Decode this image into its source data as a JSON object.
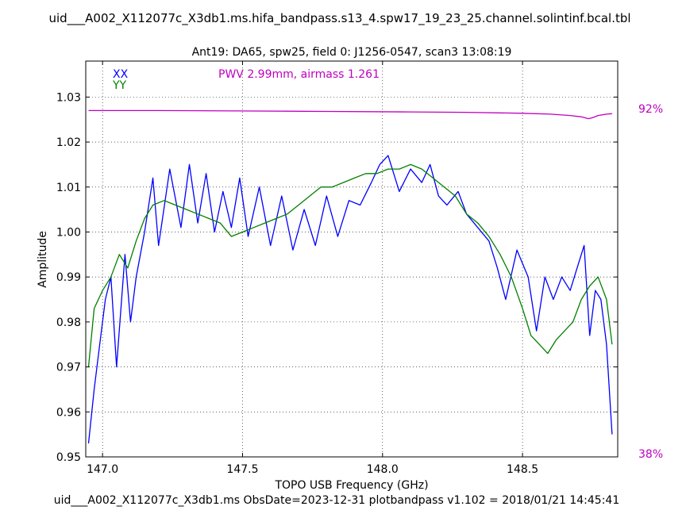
{
  "header": {
    "title": "uid___A002_X112077c_X3db1.ms.hifa_bandpass.s13_4.spw17_19_23_25.channel.solintinf.bcal.tbl",
    "subtitle": "Ant19: DA65,  spw25,  field 0: J1256-0547,  scan3  13:08:19"
  },
  "footer": {
    "text": "uid___A002_X112077c_X3db1.ms  ObsDate=2023-12-31   plotbandpass v1.102 = 2018/01/21 14:45:41"
  },
  "chart_data": {
    "type": "line",
    "xlabel": "TOPO USB Frequency (GHz)",
    "ylabel": "Amplitude",
    "xlim": [
      146.94,
      148.84
    ],
    "ylim": [
      0.95,
      1.038
    ],
    "xticks": [
      147.0,
      147.5,
      148.0,
      148.5
    ],
    "xtick_labels": [
      "147.0",
      "147.5",
      "148.0",
      "148.5"
    ],
    "yticks": [
      0.95,
      0.96,
      0.97,
      0.98,
      0.99,
      1.0,
      1.01,
      1.02,
      1.03
    ],
    "ytick_labels": [
      "0.95",
      "0.96",
      "0.97",
      "0.98",
      "0.99",
      "1.00",
      "1.01",
      "1.02",
      "1.03"
    ],
    "grid": true,
    "legend": "top-left",
    "annotation": {
      "text": "PWV 2.99mm, airmass 1.261",
      "color": "#bf00bf"
    },
    "right_axis": {
      "top_label": "92%",
      "bottom_label": "38%",
      "color": "#bf00bf"
    },
    "series": [
      {
        "name": "XX",
        "color": "#0000ff",
        "x": [
          146.95,
          146.97,
          146.99,
          147.01,
          147.03,
          147.05,
          147.08,
          147.1,
          147.12,
          147.15,
          147.18,
          147.2,
          147.24,
          147.28,
          147.31,
          147.34,
          147.37,
          147.4,
          147.43,
          147.46,
          147.49,
          147.52,
          147.56,
          147.6,
          147.64,
          147.68,
          147.72,
          147.76,
          147.8,
          147.84,
          147.88,
          147.92,
          147.96,
          147.99,
          148.02,
          148.06,
          148.1,
          148.14,
          148.17,
          148.2,
          148.23,
          148.27,
          148.3,
          148.34,
          148.38,
          148.41,
          148.44,
          148.48,
          148.52,
          148.55,
          148.58,
          148.61,
          148.64,
          148.67,
          148.7,
          148.72,
          148.74,
          148.76,
          148.78,
          148.8,
          148.82
        ],
        "values": [
          0.953,
          0.965,
          0.975,
          0.985,
          0.99,
          0.97,
          0.995,
          0.98,
          0.99,
          1.0,
          1.012,
          0.997,
          1.014,
          1.001,
          1.015,
          1.002,
          1.013,
          1.0,
          1.009,
          1.001,
          1.012,
          0.999,
          1.01,
          0.997,
          1.008,
          0.996,
          1.005,
          0.997,
          1.008,
          0.999,
          1.007,
          1.006,
          1.011,
          1.015,
          1.017,
          1.009,
          1.014,
          1.011,
          1.015,
          1.008,
          1.006,
          1.009,
          1.004,
          1.001,
          0.998,
          0.992,
          0.985,
          0.996,
          0.99,
          0.978,
          0.99,
          0.985,
          0.99,
          0.987,
          0.993,
          0.997,
          0.977,
          0.987,
          0.985,
          0.975,
          0.955
        ]
      },
      {
        "name": "YY",
        "color": "#008000",
        "x": [
          146.95,
          146.97,
          147.0,
          147.03,
          147.06,
          147.09,
          147.12,
          147.15,
          147.18,
          147.22,
          147.26,
          147.3,
          147.34,
          147.38,
          147.42,
          147.46,
          147.5,
          147.54,
          147.58,
          147.62,
          147.66,
          147.7,
          147.74,
          147.78,
          147.82,
          147.86,
          147.9,
          147.94,
          147.98,
          148.02,
          148.06,
          148.1,
          148.14,
          148.18,
          148.22,
          148.26,
          148.3,
          148.34,
          148.38,
          148.42,
          148.46,
          148.5,
          148.53,
          148.56,
          148.59,
          148.62,
          148.65,
          148.68,
          148.71,
          148.74,
          148.77,
          148.8,
          148.82
        ],
        "values": [
          0.97,
          0.983,
          0.987,
          0.99,
          0.995,
          0.992,
          0.998,
          1.003,
          1.006,
          1.007,
          1.006,
          1.005,
          1.004,
          1.003,
          1.002,
          0.999,
          1.0,
          1.001,
          1.002,
          1.003,
          1.004,
          1.006,
          1.008,
          1.01,
          1.01,
          1.011,
          1.012,
          1.013,
          1.013,
          1.014,
          1.014,
          1.015,
          1.014,
          1.012,
          1.01,
          1.008,
          1.004,
          1.002,
          0.999,
          0.995,
          0.99,
          0.983,
          0.977,
          0.975,
          0.973,
          0.976,
          0.978,
          0.98,
          0.985,
          0.988,
          0.99,
          0.985,
          0.975
        ]
      },
      {
        "name": "",
        "color": "#bf00bf",
        "x": [
          146.95,
          147.2,
          147.5,
          147.8,
          148.1,
          148.3,
          148.5,
          148.6,
          148.67,
          148.71,
          148.735,
          148.75,
          148.77,
          148.8,
          148.82
        ],
        "values": [
          1.027,
          1.027,
          1.0269,
          1.0268,
          1.0267,
          1.0266,
          1.0264,
          1.0262,
          1.0259,
          1.0256,
          1.0252,
          1.0254,
          1.0259,
          1.0262,
          1.0263
        ]
      }
    ]
  }
}
